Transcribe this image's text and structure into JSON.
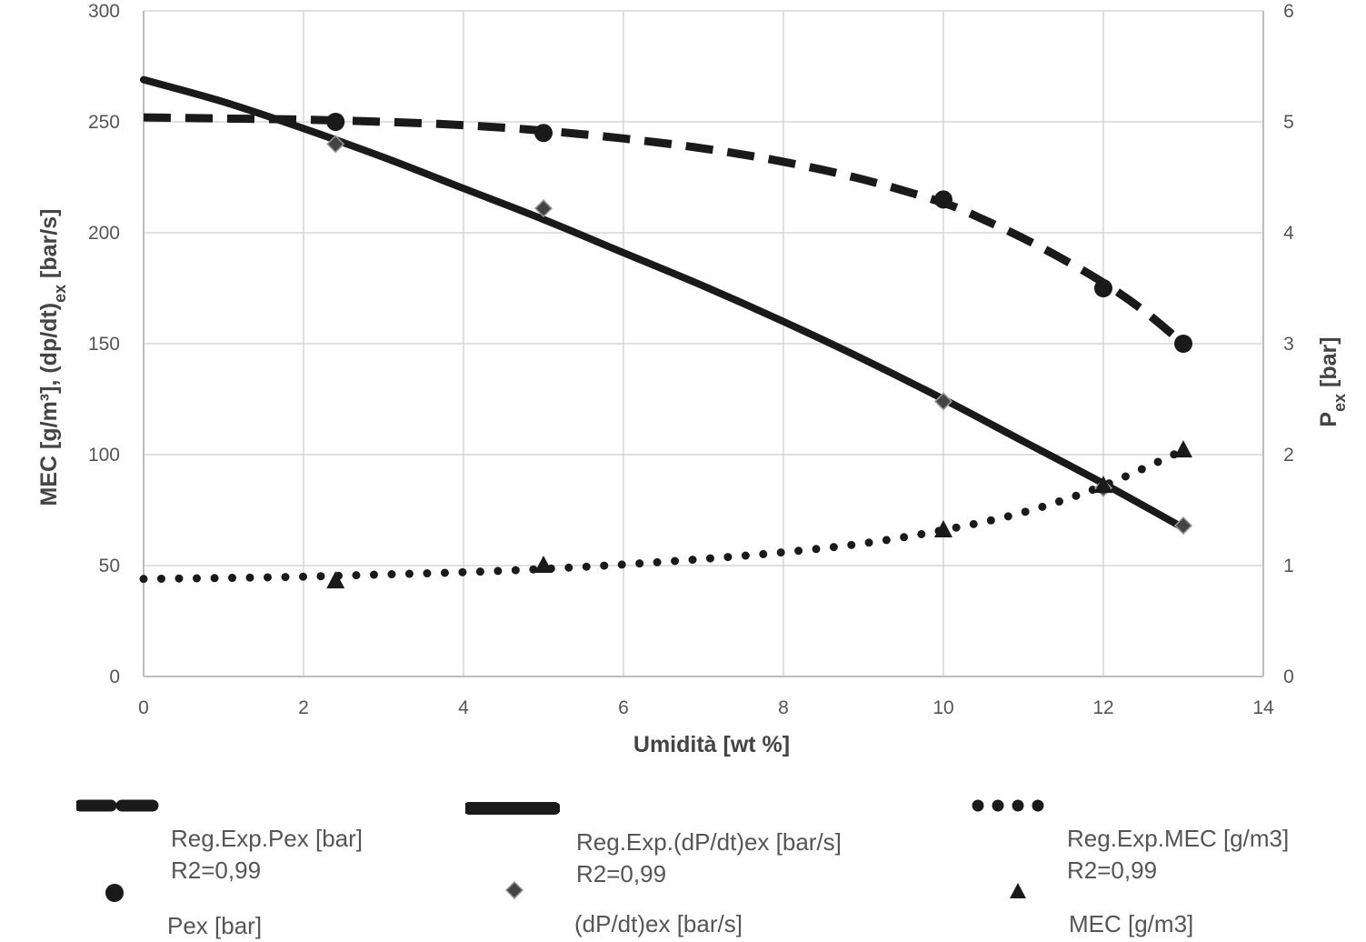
{
  "chart_data": {
    "type": "line",
    "xlabel": "Umidità [wt %]",
    "ylabel_left": "MEC [g/m³], (dp/dt)ex [bar/s]",
    "ylabel_right": "Pex [bar]",
    "xlim": [
      0,
      14
    ],
    "ylim_left": [
      0,
      300
    ],
    "ylim_right": [
      0,
      6
    ],
    "x_ticks": [
      "0",
      "2",
      "4",
      "6",
      "8",
      "10",
      "12",
      "14"
    ],
    "y_left_ticks": [
      "0",
      "50",
      "100",
      "150",
      "200",
      "250",
      "300"
    ],
    "y_right_ticks": [
      "0",
      "1",
      "2",
      "3",
      "4",
      "5",
      "6"
    ],
    "grid": true,
    "legend_position": "bottom",
    "series": [
      {
        "name": "Reg.Exp.Pex [bar]",
        "name_line2": "R2=0,99",
        "style": "dashed",
        "axis": "right",
        "x": [
          0,
          1,
          2,
          3,
          4,
          5,
          6,
          7,
          8,
          9,
          10,
          10.5,
          11,
          11.5,
          12,
          12.5,
          13
        ],
        "values": [
          5.04,
          5.03,
          5.02,
          5.0,
          4.97,
          4.92,
          4.85,
          4.76,
          4.64,
          4.48,
          4.27,
          4.12,
          3.95,
          3.76,
          3.55,
          3.3,
          3.0
        ]
      },
      {
        "name": "Reg.Exp.(dP/dt)ex [bar/s]",
        "name_line2": "R2=0,99",
        "style": "solid",
        "axis": "left",
        "x": [
          0,
          1,
          2,
          3,
          4,
          5,
          6,
          7,
          8,
          9,
          10,
          11,
          12,
          13
        ],
        "values": [
          269,
          259,
          247,
          234,
          220,
          206,
          191,
          176,
          160,
          143,
          125,
          106,
          87,
          67
        ]
      },
      {
        "name": "Reg.Exp.MEC [g/m3]",
        "name_line2": "R2=0,99",
        "style": "dotted",
        "axis": "left",
        "x": [
          0,
          1,
          2,
          3,
          4,
          5,
          6,
          7,
          8,
          9,
          10,
          11,
          12,
          13
        ],
        "values": [
          44,
          44.4,
          45,
          46,
          47,
          48.5,
          50.5,
          53,
          56,
          60,
          66,
          74,
          86,
          102
        ]
      },
      {
        "name": "Pex [bar]",
        "style": "circle",
        "axis": "right",
        "x": [
          2.4,
          5,
          10,
          12,
          13
        ],
        "values": [
          5.0,
          4.9,
          4.3,
          3.5,
          3.0
        ]
      },
      {
        "name": "(dP/dt)ex [bar/s]",
        "style": "diamond",
        "axis": "left",
        "x": [
          2.4,
          5,
          10,
          12,
          13
        ],
        "values": [
          240,
          211,
          124,
          85,
          68
        ]
      },
      {
        "name": "MEC [g/m3]",
        "style": "triangle",
        "axis": "left",
        "x": [
          2.4,
          5,
          10,
          12,
          13
        ],
        "values": [
          43,
          50,
          66,
          86,
          102
        ]
      }
    ]
  },
  "colors": {
    "series": "#1a1a1a",
    "grid": "#d6d6d6",
    "axis": "#bdbdbd",
    "text": "#555555"
  }
}
